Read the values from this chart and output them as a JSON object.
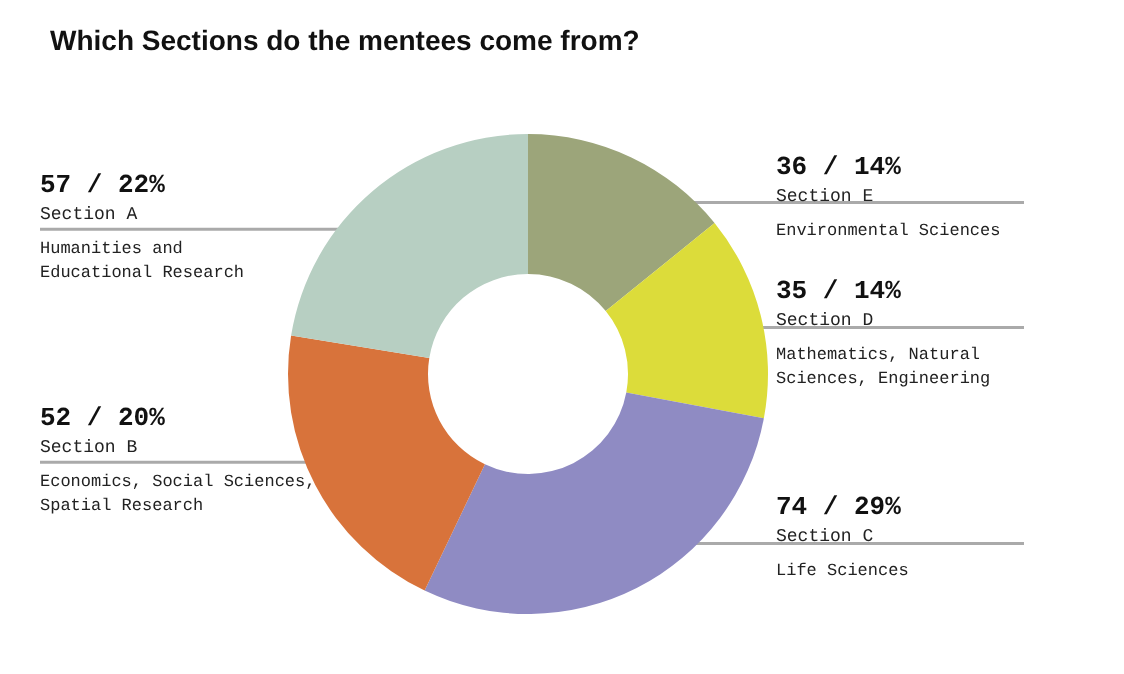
{
  "chart_data": {
    "type": "donut",
    "title": "Which Sections do the mentees come from?",
    "categories": [
      "Section E",
      "Section D",
      "Section C",
      "Section B",
      "Section A"
    ],
    "values": [
      36,
      35,
      74,
      52,
      57
    ],
    "colors": [
      "#9ca57a",
      "#dcdc3a",
      "#8f8bc3",
      "#d8733b",
      "#b7cfc2"
    ],
    "value_labels": [
      "36 / 14%",
      "35 / 14%",
      "74 / 29%",
      "52 / 20%",
      "57 / 22%"
    ],
    "annotations": [
      "Environmental Sciences",
      "Mathematics, Natural\nSciences, Engineering",
      "Life Sciences",
      "Economics, Social Sciences,\nSpatial Research",
      "Humanities and\nEducational Research"
    ],
    "legend": false
  }
}
